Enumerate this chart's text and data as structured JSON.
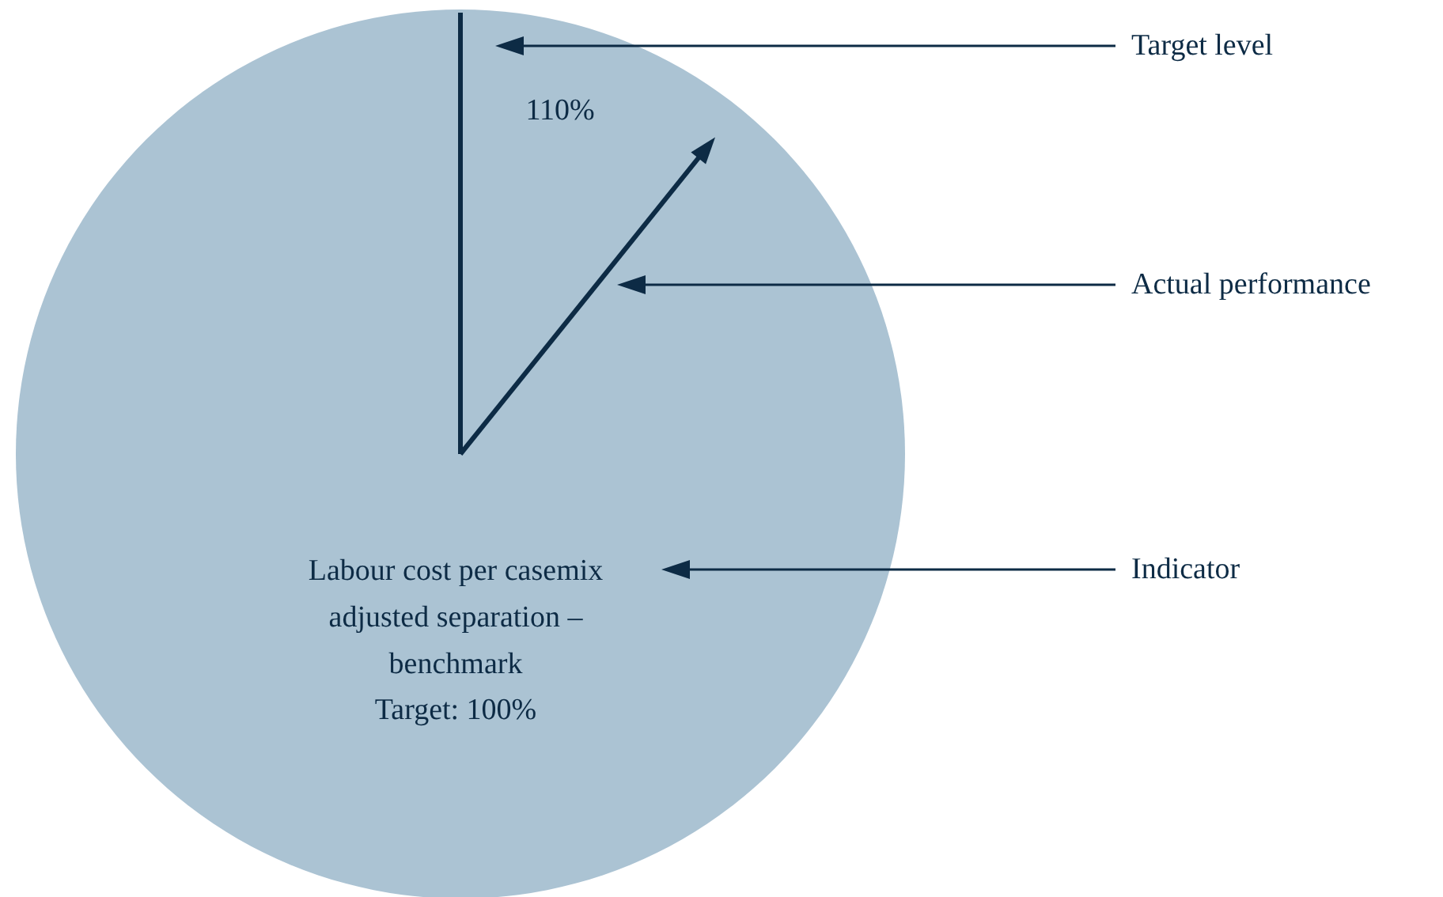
{
  "chart_data": {
    "type": "other",
    "values": [
      110
    ],
    "value_labels": [
      "110%"
    ],
    "annotations": [
      "Target level",
      "Actual performance",
      "Labour cost per casemix\nadjusted separation –\nbenchmark",
      "Target: 100%",
      "Indicator"
    ],
    "color": "#abc3d3"
  }
}
